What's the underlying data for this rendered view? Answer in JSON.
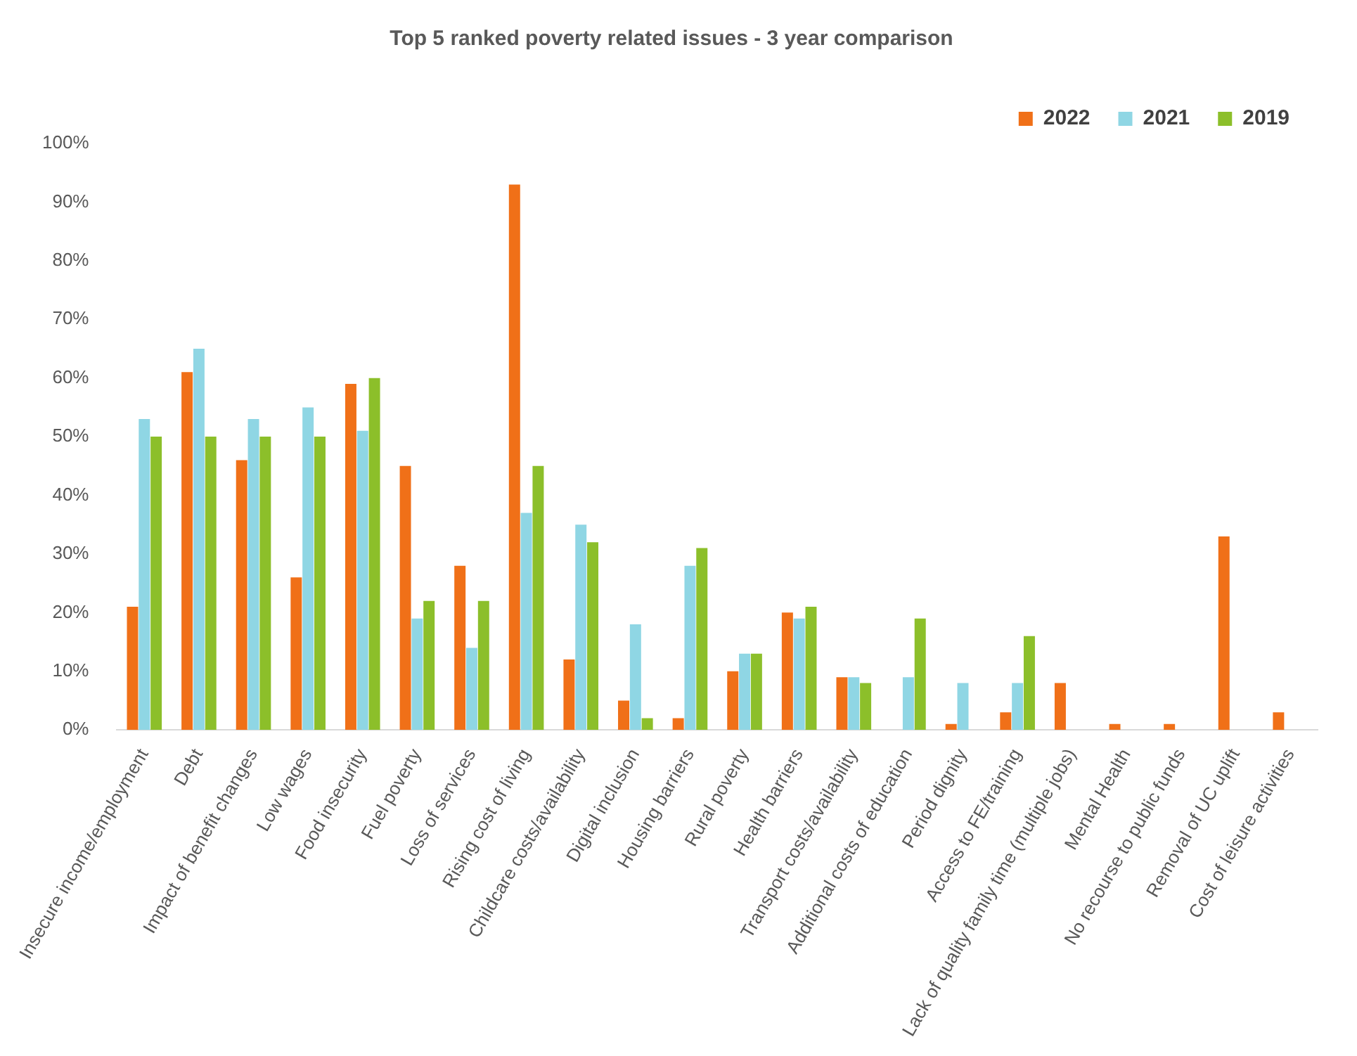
{
  "chart_data": {
    "type": "bar",
    "title": "Top 5 ranked poverty related issues - 3 year comparison",
    "categories": [
      "Insecure income/employment",
      "Debt",
      "Impact of benefit changes",
      "Low wages",
      "Food insecurity",
      "Fuel poverty",
      "Loss of services",
      "Rising cost of living",
      "Childcare costs/availability",
      "Digital inclusion",
      "Housing barriers",
      "Rural poverty",
      "Health barriers",
      "Transport costs/availability",
      "Additional costs of education",
      "Period dignity",
      "Access to FE/training",
      "Lack of quality family time (multiple jobs)",
      "Mental Health",
      "No recourse to public funds",
      "Removal of UC uplift",
      "Cost of leisure activities"
    ],
    "series": [
      {
        "name": "2022",
        "color": "#f07018",
        "values": [
          21,
          61,
          46,
          26,
          59,
          45,
          28,
          93,
          12,
          5,
          2,
          10,
          20,
          9,
          null,
          1,
          3,
          8,
          1,
          1,
          33,
          3
        ]
      },
      {
        "name": "2021",
        "color": "#8fd6e4",
        "values": [
          53,
          65,
          53,
          55,
          51,
          19,
          14,
          37,
          35,
          18,
          28,
          13,
          19,
          9,
          9,
          8,
          8,
          null,
          null,
          null,
          null,
          null
        ]
      },
      {
        "name": "2019",
        "color": "#8cbf2a",
        "values": [
          50,
          50,
          50,
          50,
          60,
          22,
          22,
          45,
          32,
          2,
          31,
          13,
          21,
          8,
          19,
          null,
          16,
          null,
          null,
          null,
          null,
          null
        ]
      }
    ],
    "ylim": [
      0,
      100
    ],
    "yticks": [
      {
        "value": 0,
        "label": "0%"
      },
      {
        "value": 10,
        "label": "10%"
      },
      {
        "value": 20,
        "label": "20%"
      },
      {
        "value": 30,
        "label": "30%"
      },
      {
        "value": 40,
        "label": "40%"
      },
      {
        "value": 50,
        "label": "50%"
      },
      {
        "value": 60,
        "label": "60%"
      },
      {
        "value": 70,
        "label": "70%"
      },
      {
        "value": 80,
        "label": "80%"
      },
      {
        "value": 90,
        "label": "90%"
      },
      {
        "value": 100,
        "label": "100%"
      }
    ],
    "grid": false,
    "legend": "top right"
  }
}
